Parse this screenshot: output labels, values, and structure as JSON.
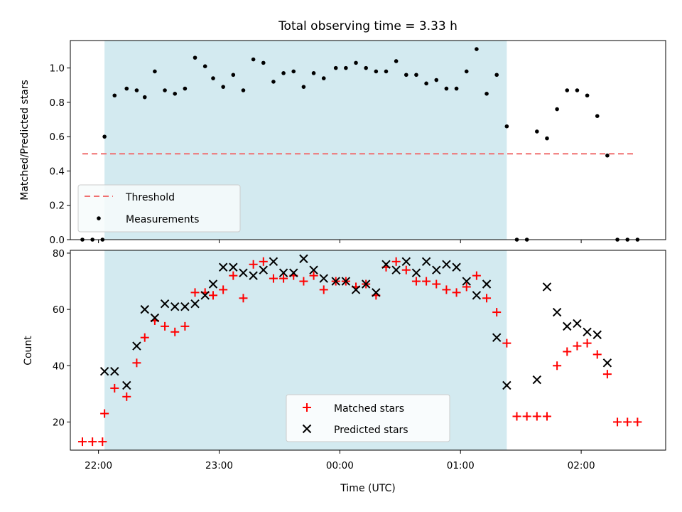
{
  "title": "Total observing time = 3.33 h",
  "xlabel": "Time (UTC)",
  "x_ticks": [
    "22:00",
    "23:00",
    "00:00",
    "01:00",
    "02:00"
  ],
  "colors": {
    "shade": "#d3eaf0",
    "threshold": "#f07070",
    "matched": "#ff0000",
    "predicted": "#000000",
    "measurements": "#000000"
  },
  "chart_data": [
    {
      "type": "scatter",
      "ylabel": "Matched/Predicted stars",
      "ylim": [
        0,
        1.16
      ],
      "xlim": [
        "21:46",
        "02:42"
      ],
      "y_ticks": [
        "0.0",
        "0.2",
        "0.4",
        "0.6",
        "0.8",
        "1.0"
      ],
      "shaded_interval": [
        "22:03",
        "01:23"
      ],
      "threshold": {
        "value": 0.5,
        "x_range": [
          "21:52",
          "02:27"
        ]
      },
      "legend": {
        "position": "lower-left",
        "entries": [
          "Threshold",
          "Measurements"
        ]
      },
      "series": [
        {
          "name": "Measurements",
          "x": [
            "21:52",
            "21:57",
            "22:02",
            "22:03",
            "22:08",
            "22:14",
            "22:19",
            "22:23",
            "22:28",
            "22:33",
            "22:38",
            "22:43",
            "22:48",
            "22:53",
            "22:57",
            "23:02",
            "23:07",
            "23:12",
            "23:17",
            "23:22",
            "23:27",
            "23:32",
            "23:37",
            "23:42",
            "23:47",
            "23:52",
            "23:58",
            "00:03",
            "00:08",
            "00:13",
            "00:18",
            "00:23",
            "00:28",
            "00:33",
            "00:38",
            "00:43",
            "00:48",
            "00:53",
            "00:58",
            "01:03",
            "01:08",
            "01:13",
            "01:18",
            "01:23",
            "01:28",
            "01:33",
            "01:38",
            "01:43",
            "01:48",
            "01:53",
            "01:58",
            "02:03",
            "02:08",
            "02:13",
            "02:18",
            "02:23",
            "02:28"
          ],
          "y": [
            0,
            0,
            0,
            0.6,
            0.84,
            0.88,
            0.87,
            0.83,
            0.98,
            0.87,
            0.85,
            0.88,
            1.06,
            1.01,
            0.94,
            0.89,
            0.96,
            0.87,
            1.05,
            1.03,
            0.92,
            0.97,
            0.98,
            0.89,
            0.97,
            0.94,
            1.0,
            1.0,
            1.03,
            1.0,
            0.98,
            0.98,
            1.04,
            0.96,
            0.96,
            0.91,
            0.93,
            0.88,
            0.88,
            0.98,
            1.11,
            0.85,
            0.96,
            0.66,
            0,
            0,
            0.63,
            0.59,
            0.76,
            0.87,
            0.87,
            0.84,
            0.72,
            0.49,
            0,
            0,
            0
          ]
        }
      ]
    },
    {
      "type": "scatter",
      "ylabel": "Count",
      "ylim": [
        10,
        81
      ],
      "xlim": [
        "21:46",
        "02:42"
      ],
      "y_ticks": [
        "20",
        "40",
        "60",
        "80"
      ],
      "shaded_interval": [
        "22:03",
        "01:23"
      ],
      "legend": {
        "position": "lower-center",
        "entries": [
          "Matched stars",
          "Predicted stars"
        ]
      },
      "series": [
        {
          "name": "Matched stars",
          "marker": "+",
          "x": [
            "21:52",
            "21:57",
            "22:02",
            "22:03",
            "22:08",
            "22:14",
            "22:19",
            "22:23",
            "22:28",
            "22:33",
            "22:38",
            "22:43",
            "22:48",
            "22:53",
            "22:57",
            "23:02",
            "23:07",
            "23:12",
            "23:17",
            "23:22",
            "23:27",
            "23:32",
            "23:37",
            "23:42",
            "23:47",
            "23:52",
            "23:58",
            "00:03",
            "00:08",
            "00:13",
            "00:18",
            "00:23",
            "00:28",
            "00:33",
            "00:38",
            "00:43",
            "00:48",
            "00:53",
            "00:58",
            "01:03",
            "01:08",
            "01:13",
            "01:18",
            "01:23",
            "01:28",
            "01:33",
            "01:38",
            "01:43",
            "01:48",
            "01:53",
            "01:58",
            "02:03",
            "02:08",
            "02:13",
            "02:18",
            "02:23",
            "02:28"
          ],
          "y": [
            13,
            13,
            13,
            23,
            32,
            29,
            41,
            50,
            56,
            54,
            52,
            54,
            66,
            66,
            65,
            67,
            72,
            64,
            76,
            77,
            71,
            71,
            72,
            70,
            72,
            67,
            70,
            70,
            68,
            69,
            65,
            75,
            77,
            74,
            70,
            70,
            69,
            67,
            66,
            68,
            72,
            64,
            59,
            48,
            22,
            22,
            22,
            22,
            40,
            45,
            47,
            48,
            44,
            37,
            20,
            20,
            20
          ]
        },
        {
          "name": "Predicted stars",
          "marker": "x",
          "x": [
            "22:03",
            "22:08",
            "22:14",
            "22:19",
            "22:23",
            "22:28",
            "22:33",
            "22:38",
            "22:43",
            "22:48",
            "22:53",
            "22:57",
            "23:02",
            "23:07",
            "23:12",
            "23:17",
            "23:22",
            "23:27",
            "23:32",
            "23:37",
            "23:42",
            "23:47",
            "23:52",
            "23:58",
            "00:03",
            "00:08",
            "00:13",
            "00:18",
            "00:23",
            "00:28",
            "00:33",
            "00:38",
            "00:43",
            "00:48",
            "00:53",
            "00:58",
            "01:03",
            "01:08",
            "01:13",
            "01:18",
            "01:23",
            "01:38",
            "01:43",
            "01:48",
            "01:53",
            "01:58",
            "02:03",
            "02:08",
            "02:13"
          ],
          "y": [
            38,
            38,
            33,
            47,
            60,
            57,
            62,
            61,
            61,
            62,
            65,
            69,
            75,
            75,
            73,
            72,
            74,
            77,
            73,
            73,
            78,
            74,
            71,
            70,
            70,
            67,
            69,
            66,
            76,
            74,
            77,
            73,
            77,
            74,
            76,
            75,
            70,
            65,
            69,
            50,
            33,
            35,
            68,
            59,
            54,
            55,
            52,
            51,
            41
          ]
        }
      ]
    }
  ]
}
